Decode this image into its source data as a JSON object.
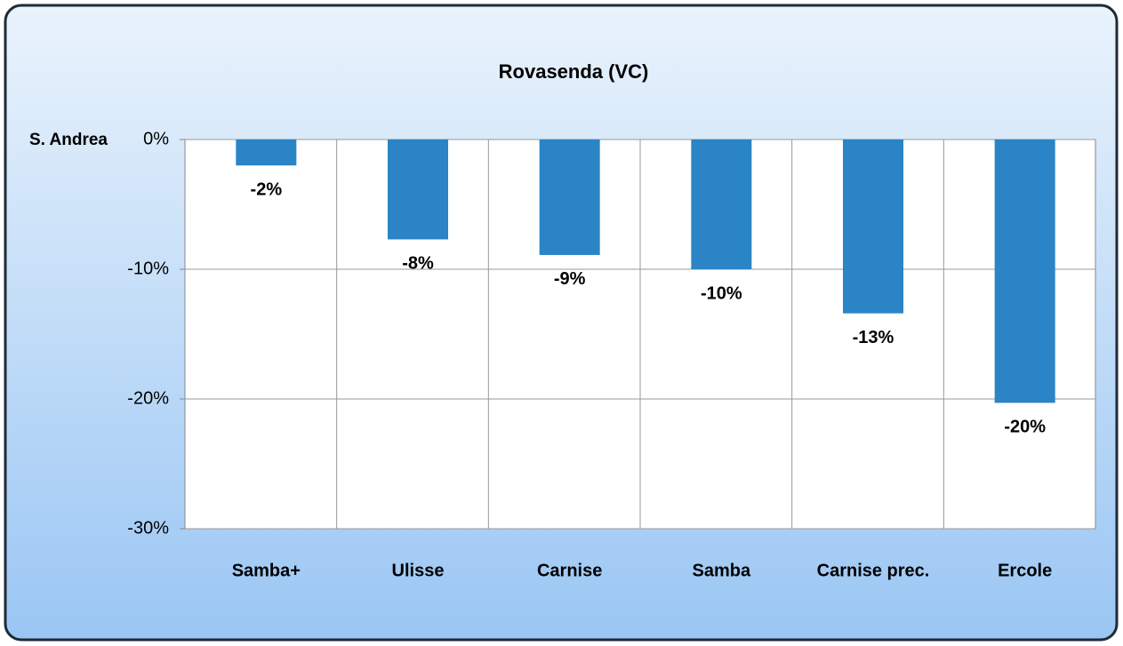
{
  "chart_data": {
    "type": "bar",
    "title": "Rovasenda (VC)",
    "annotation": "S. Andrea",
    "categories": [
      "Samba+",
      "Ulisse",
      "Carnise",
      "Samba",
      "Carnise prec.",
      "Ercole"
    ],
    "values": [
      -2,
      -7.7,
      -8.9,
      -10,
      -13.4,
      -20.3
    ],
    "value_labels": [
      "-2%",
      "-8%",
      "-9%",
      "-10%",
      "-13%",
      "-20%"
    ],
    "color": "#2a84c6",
    "ylim": [
      -30,
      0
    ],
    "yticks": [
      {
        "value": 0,
        "label": "0%"
      },
      {
        "value": -10,
        "label": "-10%"
      },
      {
        "value": -20,
        "label": "-20%"
      },
      {
        "value": -30,
        "label": "-30%"
      }
    ],
    "grid": true
  }
}
